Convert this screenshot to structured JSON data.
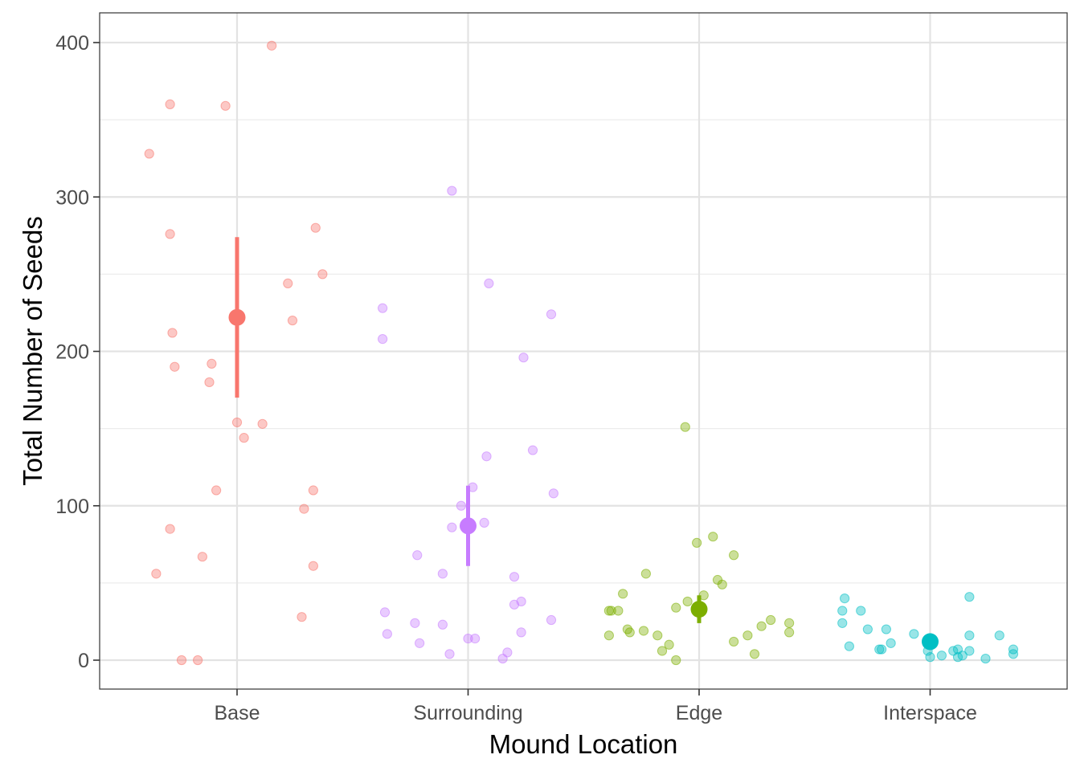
{
  "chart_data": {
    "type": "scatter",
    "xlabel": "Mound Location",
    "ylabel": "Total Number of Seeds",
    "categories": [
      "Base",
      "Surrounding",
      "Edge",
      "Interspace"
    ],
    "ylim": [
      -18,
      420
    ],
    "yticks": [
      0,
      100,
      200,
      300,
      400
    ],
    "grid": true,
    "legend": "none",
    "series": [
      {
        "category": "Base",
        "color": "#F8766D",
        "mean": 222,
        "ci": [
          170,
          274
        ],
        "points": [
          {
            "dx": -0.38,
            "y": 328
          },
          {
            "dx": -0.29,
            "y": 360
          },
          {
            "dx": -0.05,
            "y": 359
          },
          {
            "dx": 0.15,
            "y": 398
          },
          {
            "dx": -0.29,
            "y": 276
          },
          {
            "dx": 0.34,
            "y": 280
          },
          {
            "dx": 0.37,
            "y": 250
          },
          {
            "dx": 0.22,
            "y": 244
          },
          {
            "dx": 0.24,
            "y": 220
          },
          {
            "dx": -0.28,
            "y": 212
          },
          {
            "dx": -0.27,
            "y": 190
          },
          {
            "dx": -0.11,
            "y": 192
          },
          {
            "dx": -0.12,
            "y": 180
          },
          {
            "dx": 0.0,
            "y": 154
          },
          {
            "dx": 0.11,
            "y": 153
          },
          {
            "dx": 0.03,
            "y": 144
          },
          {
            "dx": -0.09,
            "y": 110
          },
          {
            "dx": 0.33,
            "y": 110
          },
          {
            "dx": 0.29,
            "y": 98
          },
          {
            "dx": -0.29,
            "y": 85
          },
          {
            "dx": -0.15,
            "y": 67
          },
          {
            "dx": 0.33,
            "y": 61
          },
          {
            "dx": -0.35,
            "y": 56
          },
          {
            "dx": 0.28,
            "y": 28
          },
          {
            "dx": -0.24,
            "y": 0
          },
          {
            "dx": -0.17,
            "y": 0
          }
        ]
      },
      {
        "category": "Surrounding",
        "color": "#C77CFF",
        "mean": 87,
        "ci": [
          61,
          113
        ],
        "points": [
          {
            "dx": -0.07,
            "y": 304
          },
          {
            "dx": 0.09,
            "y": 244
          },
          {
            "dx": -0.37,
            "y": 228
          },
          {
            "dx": 0.36,
            "y": 224
          },
          {
            "dx": -0.37,
            "y": 208
          },
          {
            "dx": 0.24,
            "y": 196
          },
          {
            "dx": 0.28,
            "y": 136
          },
          {
            "dx": 0.08,
            "y": 132
          },
          {
            "dx": 0.02,
            "y": 112
          },
          {
            "dx": 0.37,
            "y": 108
          },
          {
            "dx": -0.03,
            "y": 100
          },
          {
            "dx": 0.07,
            "y": 89
          },
          {
            "dx": -0.07,
            "y": 86
          },
          {
            "dx": -0.22,
            "y": 68
          },
          {
            "dx": -0.11,
            "y": 56
          },
          {
            "dx": 0.2,
            "y": 54
          },
          {
            "dx": 0.23,
            "y": 38
          },
          {
            "dx": 0.2,
            "y": 36
          },
          {
            "dx": -0.36,
            "y": 31
          },
          {
            "dx": 0.36,
            "y": 26
          },
          {
            "dx": -0.23,
            "y": 24
          },
          {
            "dx": -0.11,
            "y": 23
          },
          {
            "dx": -0.35,
            "y": 17
          },
          {
            "dx": 0.23,
            "y": 18
          },
          {
            "dx": 0.0,
            "y": 14
          },
          {
            "dx": 0.03,
            "y": 14
          },
          {
            "dx": -0.21,
            "y": 11
          },
          {
            "dx": 0.17,
            "y": 5
          },
          {
            "dx": -0.08,
            "y": 4
          },
          {
            "dx": 0.15,
            "y": 1
          }
        ]
      },
      {
        "category": "Edge",
        "color": "#7CAE00",
        "mean": 33,
        "ci": [
          24,
          42
        ],
        "points": [
          {
            "dx": -0.06,
            "y": 151
          },
          {
            "dx": 0.06,
            "y": 80
          },
          {
            "dx": -0.01,
            "y": 76
          },
          {
            "dx": 0.15,
            "y": 68
          },
          {
            "dx": -0.23,
            "y": 56
          },
          {
            "dx": 0.08,
            "y": 52
          },
          {
            "dx": 0.1,
            "y": 49
          },
          {
            "dx": -0.33,
            "y": 43
          },
          {
            "dx": 0.02,
            "y": 42
          },
          {
            "dx": -0.05,
            "y": 38
          },
          {
            "dx": -0.1,
            "y": 34
          },
          {
            "dx": -0.39,
            "y": 32
          },
          {
            "dx": -0.38,
            "y": 32
          },
          {
            "dx": -0.35,
            "y": 32
          },
          {
            "dx": 0.31,
            "y": 26
          },
          {
            "dx": 0.27,
            "y": 22
          },
          {
            "dx": 0.39,
            "y": 24
          },
          {
            "dx": -0.31,
            "y": 20
          },
          {
            "dx": -0.24,
            "y": 19
          },
          {
            "dx": -0.3,
            "y": 18
          },
          {
            "dx": 0.39,
            "y": 18
          },
          {
            "dx": -0.18,
            "y": 16
          },
          {
            "dx": 0.21,
            "y": 16
          },
          {
            "dx": -0.39,
            "y": 16
          },
          {
            "dx": 0.15,
            "y": 12
          },
          {
            "dx": -0.13,
            "y": 10
          },
          {
            "dx": -0.16,
            "y": 6
          },
          {
            "dx": 0.24,
            "y": 4
          },
          {
            "dx": -0.1,
            "y": 0
          }
        ]
      },
      {
        "category": "Interspace",
        "color": "#00BFC4",
        "mean": 12,
        "ci": [
          9,
          15
        ],
        "points": [
          {
            "dx": -0.37,
            "y": 40
          },
          {
            "dx": 0.17,
            "y": 41
          },
          {
            "dx": -0.38,
            "y": 32
          },
          {
            "dx": -0.3,
            "y": 32
          },
          {
            "dx": -0.38,
            "y": 24
          },
          {
            "dx": -0.27,
            "y": 20
          },
          {
            "dx": -0.19,
            "y": 20
          },
          {
            "dx": -0.07,
            "y": 17
          },
          {
            "dx": 0.3,
            "y": 16
          },
          {
            "dx": 0.17,
            "y": 16
          },
          {
            "dx": 0.0,
            "y": 14
          },
          {
            "dx": -0.17,
            "y": 11
          },
          {
            "dx": -0.35,
            "y": 9
          },
          {
            "dx": -0.22,
            "y": 7
          },
          {
            "dx": -0.21,
            "y": 7
          },
          {
            "dx": -0.01,
            "y": 6
          },
          {
            "dx": 0.1,
            "y": 6
          },
          {
            "dx": 0.12,
            "y": 7
          },
          {
            "dx": 0.17,
            "y": 6
          },
          {
            "dx": 0.36,
            "y": 7
          },
          {
            "dx": 0.36,
            "y": 4
          },
          {
            "dx": 0.05,
            "y": 3
          },
          {
            "dx": 0.14,
            "y": 3
          },
          {
            "dx": 0.12,
            "y": 2
          },
          {
            "dx": 0.0,
            "y": 2
          },
          {
            "dx": 0.24,
            "y": 1
          }
        ]
      }
    ]
  }
}
